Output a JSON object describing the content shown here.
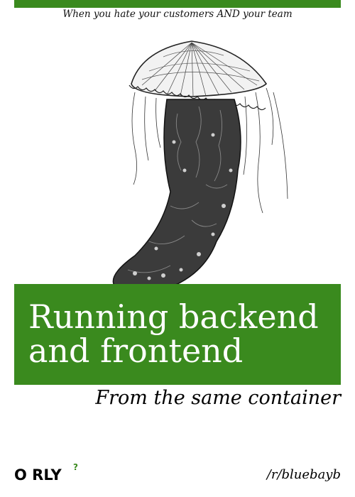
{
  "cover": {
    "tagline": "When you hate your customers AND your team",
    "title_line1": "Running backend",
    "title_line2": "and frontend",
    "subtitle": "From the same container",
    "brand": "O RLY",
    "brand_mark": "?",
    "author": "/r/bluebayb",
    "accent_color": "#3a8a1e",
    "illustration": "jellyfish-engraving"
  }
}
